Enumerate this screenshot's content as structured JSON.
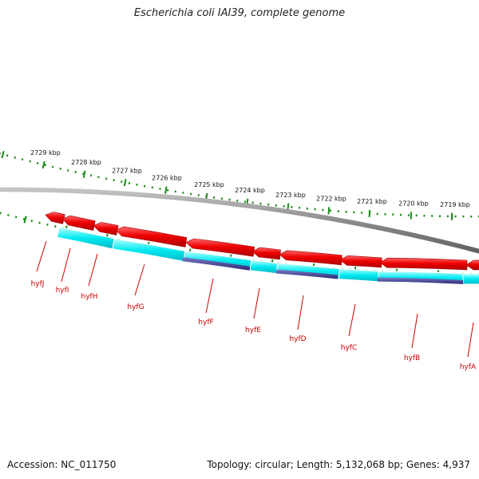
{
  "title": "Escherichia coli IAI39, complete genome",
  "footer": {
    "accession": "Accession: NC_011750",
    "summary": "Topology: circular; Length: 5,132,068 bp; Genes: 4,937"
  },
  "colors": {
    "cds": "#ee0000",
    "gene": "#00e8ee",
    "protein": "#3a3a8c",
    "backbone": "#8c8c8c",
    "ticks": "#1a8a1a",
    "label": "#cc0000"
  },
  "kbp_labels": [
    "2729 kbp",
    "2728 kbp",
    "2727 kbp",
    "2726 kbp",
    "2725 kbp",
    "2724 kbp",
    "2723 kbp",
    "2722 kbp",
    "2721 kbp",
    "2720 kbp",
    "2719 kbp"
  ],
  "genes": [
    {
      "name": "hyfJ"
    },
    {
      "name": "hyfI"
    },
    {
      "name": "hyfH"
    },
    {
      "name": "hyfG"
    },
    {
      "name": "hyfF"
    },
    {
      "name": "hyfE"
    },
    {
      "name": "hyfD"
    },
    {
      "name": "hyfC"
    },
    {
      "name": "hyfB"
    },
    {
      "name": "hyfA"
    }
  ]
}
